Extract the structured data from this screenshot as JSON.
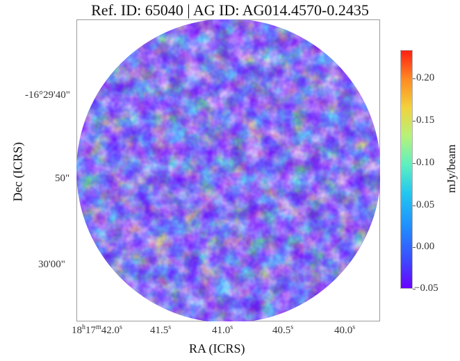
{
  "title": "Ref. ID: 65040 | AG ID: AG014.4570-0.2435",
  "x_axis": {
    "label": "RA (ICRS)",
    "ticks": [
      {
        "h": "18",
        "m": "17",
        "s": "42.0"
      },
      {
        "s": "41.5"
      },
      {
        "s": "41.0"
      },
      {
        "s": "40.5"
      },
      {
        "s": "40.0"
      }
    ]
  },
  "y_axis": {
    "label": "Dec (ICRS)",
    "ticks": [
      "-16°29'40\"",
      "50\"",
      "30'00\""
    ]
  },
  "colorbar": {
    "label": "mJy/beam",
    "ticks": [
      "0.20",
      "0.15",
      "0.10",
      "0.05",
      "0.00",
      "−0.05"
    ],
    "colormap": "rainbow",
    "range": [
      -0.05,
      0.23
    ]
  },
  "colors": {
    "low": "#6a00ff",
    "mid": "#22c7f0",
    "high": "#ff1e12"
  }
}
